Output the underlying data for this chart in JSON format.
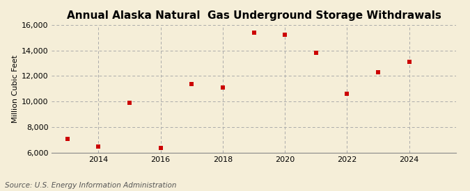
{
  "title": "Annual Alaska Natural  Gas Underground Storage Withdrawals",
  "ylabel": "Million Cubic Feet",
  "source": "Source: U.S. Energy Information Administration",
  "background_color": "#f5eed8",
  "years": [
    2013,
    2014,
    2015,
    2016,
    2017,
    2018,
    2019,
    2020,
    2021,
    2022,
    2023,
    2024
  ],
  "values": [
    7100,
    6500,
    9900,
    6400,
    11400,
    11100,
    15400,
    15200,
    13800,
    10600,
    12300,
    13100
  ],
  "marker_color": "#cc0000",
  "marker_size": 5,
  "ylim": [
    6000,
    16000
  ],
  "yticks": [
    6000,
    8000,
    10000,
    12000,
    14000,
    16000
  ],
  "xlim": [
    2012.5,
    2025.5
  ],
  "xticks": [
    2014,
    2016,
    2018,
    2020,
    2022,
    2024
  ],
  "grid_color": "#aaaaaa",
  "title_fontsize": 11,
  "axis_fontsize": 8,
  "source_fontsize": 7.5
}
